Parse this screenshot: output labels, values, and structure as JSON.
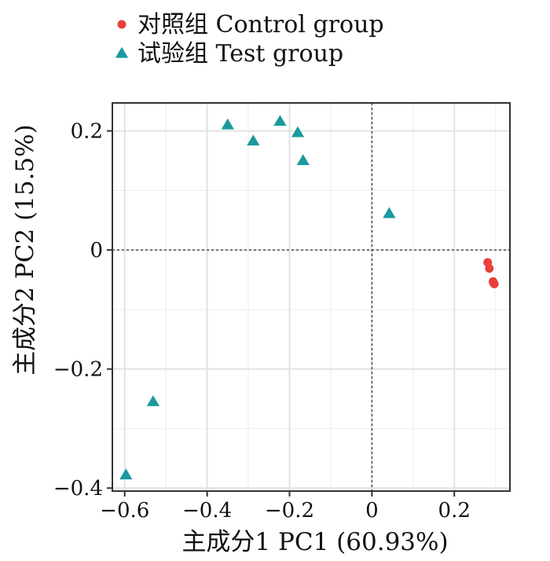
{
  "chart_data": {
    "type": "scatter",
    "xlabel": "主成分1 PC1 (60.93%)",
    "ylabel": "主成分2 PC2 (15.5%)",
    "xlim": [
      -0.63,
      0.335
    ],
    "ylim": [
      -0.405,
      0.247
    ],
    "xticks": [
      {
        "value": -0.6,
        "label": "−0.6"
      },
      {
        "value": -0.4,
        "label": "−0.4"
      },
      {
        "value": -0.2,
        "label": "−0.2"
      },
      {
        "value": 0,
        "label": "0"
      },
      {
        "value": 0.2,
        "label": "0.2"
      }
    ],
    "yticks": [
      {
        "value": 0.2,
        "label": "0.2"
      },
      {
        "value": 0,
        "label": "0"
      },
      {
        "value": -0.2,
        "label": "−0.2"
      },
      {
        "value": -0.4,
        "label": "−0.4"
      }
    ],
    "grid": true,
    "reference_lines": {
      "x": 0,
      "y": 0,
      "style": "dashed"
    },
    "legend_position": "top-left",
    "series": [
      {
        "name": "对照组 Control group",
        "marker": "circle",
        "color": "#e8403a",
        "points": [
          {
            "x": 0.281,
            "y": -0.021
          },
          {
            "x": 0.285,
            "y": -0.031
          },
          {
            "x": 0.294,
            "y": -0.053
          },
          {
            "x": 0.297,
            "y": -0.057
          },
          {
            "x": 0.295,
            "y": -0.055
          }
        ]
      },
      {
        "name": "试验组 Test group",
        "marker": "triangle",
        "color": "#1a9a9e",
        "points": [
          {
            "x": -0.35,
            "y": 0.21
          },
          {
            "x": -0.288,
            "y": 0.183
          },
          {
            "x": -0.223,
            "y": 0.216
          },
          {
            "x": -0.18,
            "y": 0.197
          },
          {
            "x": -0.167,
            "y": 0.15
          },
          {
            "x": 0.042,
            "y": 0.061
          },
          {
            "x": -0.531,
            "y": -0.255
          },
          {
            "x": -0.597,
            "y": -0.378
          }
        ]
      }
    ]
  }
}
